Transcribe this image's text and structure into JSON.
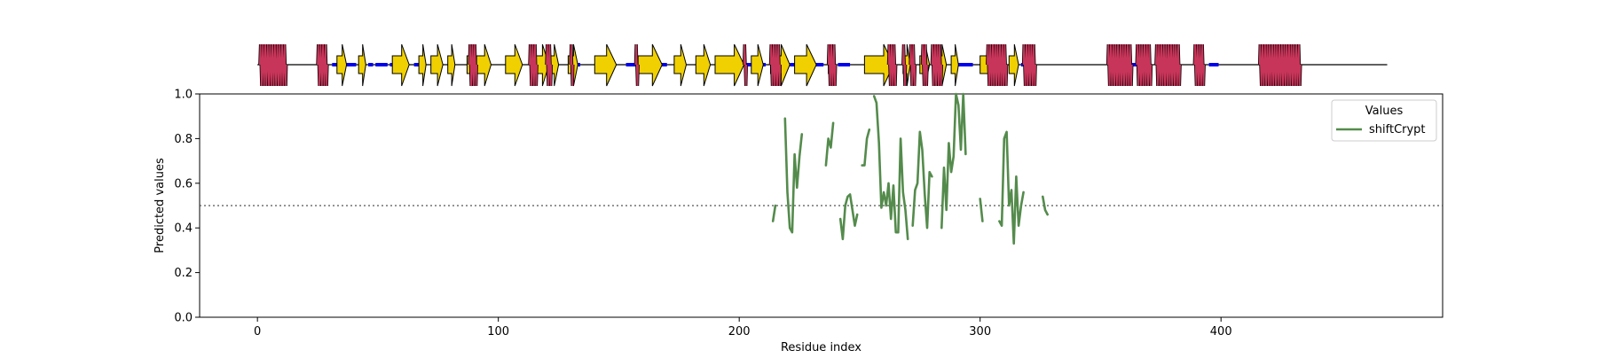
{
  "chart_data": {
    "type": "line",
    "xlabel": "Residue index",
    "ylabel": "Predicted values",
    "xlim": [
      -24,
      492
    ],
    "ylim": [
      0.0,
      1.0
    ],
    "xticks": [
      0,
      100,
      200,
      300,
      400
    ],
    "yticks": [
      0.0,
      0.2,
      0.4,
      0.6,
      0.8,
      1.0
    ],
    "xtick_labels": [
      "0",
      "100",
      "200",
      "300",
      "400"
    ],
    "ytick_labels": [
      "0.0",
      "0.2",
      "0.4",
      "0.6",
      "0.8",
      "1.0"
    ],
    "grid": false,
    "threshold": {
      "value": 0.5,
      "style": "dotted",
      "color": "#555555"
    },
    "legend": {
      "title": "Values",
      "placement": "top-right"
    },
    "series": [
      {
        "name": "shiftCrypt",
        "color": "#548b4c",
        "segments": [
          [
            [
              214,
              0.43
            ],
            [
              215,
              0.5
            ]
          ],
          [
            [
              219,
              0.89
            ],
            [
              220,
              0.56
            ],
            [
              221,
              0.4
            ],
            [
              222,
              0.38
            ],
            [
              223,
              0.73
            ],
            [
              224,
              0.58
            ],
            [
              225,
              0.72
            ],
            [
              226,
              0.82
            ]
          ],
          [
            [
              236,
              0.68
            ],
            [
              237,
              0.8
            ],
            [
              238,
              0.76
            ],
            [
              239,
              0.87
            ]
          ],
          [
            [
              242,
              0.44
            ],
            [
              243,
              0.35
            ],
            [
              244,
              0.5
            ],
            [
              245,
              0.54
            ],
            [
              246,
              0.55
            ],
            [
              247,
              0.48
            ],
            [
              248,
              0.41
            ],
            [
              249,
              0.46
            ]
          ],
          [
            [
              251,
              0.68
            ],
            [
              252,
              0.68
            ],
            [
              253,
              0.8
            ],
            [
              254,
              0.84
            ]
          ],
          [
            [
              256,
              0.99
            ],
            [
              257,
              0.96
            ],
            [
              258,
              0.78
            ],
            [
              259,
              0.49
            ],
            [
              260,
              0.56
            ],
            [
              261,
              0.5
            ],
            [
              262,
              0.6
            ],
            [
              263,
              0.44
            ],
            [
              264,
              0.59
            ],
            [
              265,
              0.38
            ],
            [
              266,
              0.38
            ],
            [
              267,
              0.8
            ],
            [
              268,
              0.56
            ],
            [
              269,
              0.48
            ],
            [
              270,
              0.35
            ]
          ],
          [
            [
              272,
              0.41
            ],
            [
              273,
              0.57
            ],
            [
              274,
              0.6
            ],
            [
              275,
              0.83
            ],
            [
              276,
              0.75
            ],
            [
              277,
              0.55
            ],
            [
              278,
              0.4
            ],
            [
              279,
              0.65
            ],
            [
              280,
              0.63
            ]
          ],
          [
            [
              284,
              0.4
            ],
            [
              285,
              0.67
            ],
            [
              286,
              0.48
            ],
            [
              287,
              0.78
            ],
            [
              288,
              0.65
            ],
            [
              289,
              0.72
            ],
            [
              290,
              1.0
            ],
            [
              291,
              0.95
            ],
            [
              292,
              0.75
            ],
            [
              293,
              1.0
            ],
            [
              294,
              0.73
            ]
          ],
          [
            [
              300,
              0.53
            ],
            [
              301,
              0.43
            ]
          ],
          [
            [
              308,
              0.43
            ],
            [
              309,
              0.41
            ],
            [
              310,
              0.8
            ],
            [
              311,
              0.83
            ],
            [
              312,
              0.5
            ],
            [
              313,
              0.57
            ],
            [
              314,
              0.33
            ],
            [
              315,
              0.63
            ],
            [
              316,
              0.41
            ],
            [
              317,
              0.5
            ],
            [
              318,
              0.56
            ]
          ],
          [
            [
              326,
              0.54
            ],
            [
              327,
              0.48
            ],
            [
              328,
              0.46
            ]
          ]
        ]
      }
    ],
    "secondary_structure": {
      "x_start": 0,
      "x_end": 469,
      "colors": {
        "helix": "#c8355a",
        "strand": "#f0d000",
        "turn": "#0000ee",
        "coil": "#000000"
      },
      "helices": [
        [
          1,
          12
        ],
        [
          25,
          29
        ],
        [
          88,
          91
        ],
        [
          113,
          116
        ],
        [
          120,
          122
        ],
        [
          130,
          131
        ],
        [
          157,
          158
        ],
        [
          202,
          203
        ],
        [
          213,
          217
        ],
        [
          237,
          240
        ],
        [
          262,
          265
        ],
        [
          268,
          269
        ],
        [
          271,
          273
        ],
        [
          276,
          278
        ],
        [
          280,
          284
        ],
        [
          303,
          311
        ],
        [
          318,
          323
        ],
        [
          353,
          363
        ],
        [
          365,
          371
        ],
        [
          373,
          383
        ],
        [
          389,
          393
        ],
        [
          416,
          433
        ]
      ],
      "strands": [
        [
          33,
          37
        ],
        [
          42,
          45
        ],
        [
          56,
          63
        ],
        [
          67,
          70
        ],
        [
          72,
          77
        ],
        [
          79,
          82
        ],
        [
          87,
          90
        ],
        [
          91,
          97
        ],
        [
          103,
          110
        ],
        [
          115,
          121
        ],
        [
          121,
          125
        ],
        [
          129,
          133
        ],
        [
          140,
          149
        ],
        [
          158,
          168
        ],
        [
          173,
          178
        ],
        [
          182,
          188
        ],
        [
          190,
          202
        ],
        [
          205,
          210
        ],
        [
          213,
          221
        ],
        [
          223,
          232
        ],
        [
          237,
          240
        ],
        [
          252,
          264
        ],
        [
          268,
          271
        ],
        [
          275,
          279
        ],
        [
          282,
          286
        ],
        [
          288,
          291
        ],
        [
          300,
          310
        ],
        [
          312,
          316
        ]
      ],
      "turns": [
        [
          31,
          34
        ],
        [
          37,
          41
        ],
        [
          46,
          48
        ],
        [
          49,
          54
        ],
        [
          55,
          57
        ],
        [
          60,
          62
        ],
        [
          65,
          67
        ],
        [
          68,
          69
        ],
        [
          79,
          81
        ],
        [
          104,
          106
        ],
        [
          119,
          121
        ],
        [
          123,
          125
        ],
        [
          131,
          134
        ],
        [
          153,
          158
        ],
        [
          167,
          170
        ],
        [
          182,
          185
        ],
        [
          203,
          206
        ],
        [
          209,
          211
        ],
        [
          215,
          218
        ],
        [
          221,
          224
        ],
        [
          226,
          235
        ],
        [
          241,
          246
        ],
        [
          280,
          282
        ],
        [
          289,
          292
        ],
        [
          292,
          297
        ],
        [
          317,
          320
        ],
        [
          363,
          366
        ],
        [
          395,
          399
        ]
      ]
    }
  }
}
